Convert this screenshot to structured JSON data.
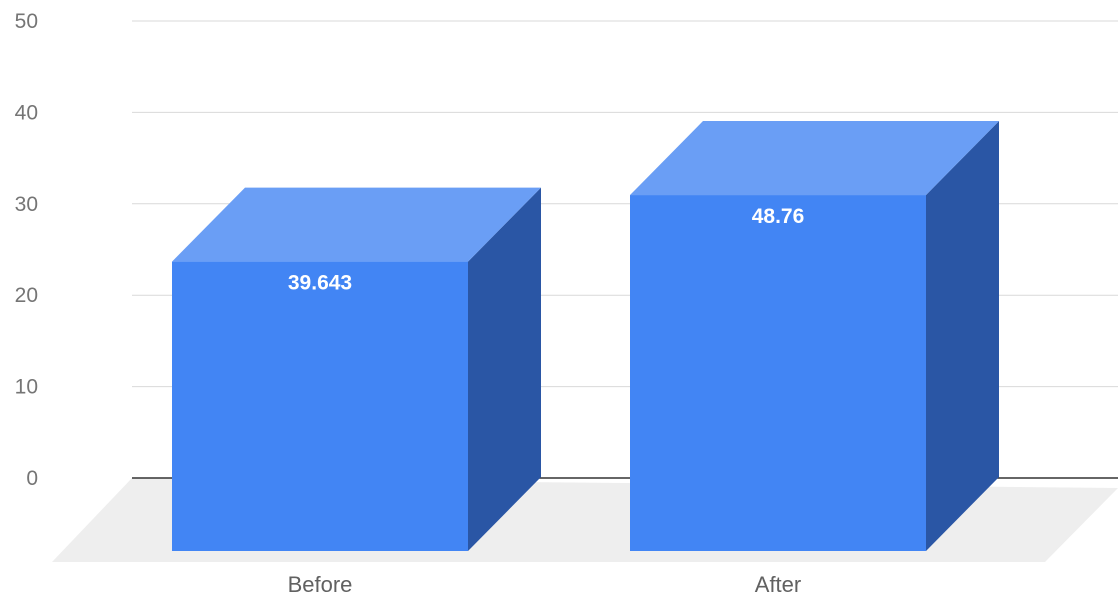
{
  "chart_data": {
    "type": "bar",
    "style": "3d",
    "title": "",
    "xlabel": "",
    "ylabel": "",
    "categories": [
      "Before",
      "After"
    ],
    "values": [
      39.643,
      48.76
    ],
    "data_labels": [
      "39.643",
      "48.76"
    ],
    "y_ticks": [
      "0",
      "10",
      "20",
      "30",
      "40",
      "50"
    ],
    "ylim": [
      0,
      50
    ],
    "grid": true,
    "legend": "none"
  },
  "colors": {
    "bar_front": "#4285f4",
    "bar_top": "#6a9ef5",
    "bar_side": "#2a56a5",
    "gridline": "#d9d9d9",
    "baseline": "#333333",
    "floor": "#eeeeee"
  }
}
